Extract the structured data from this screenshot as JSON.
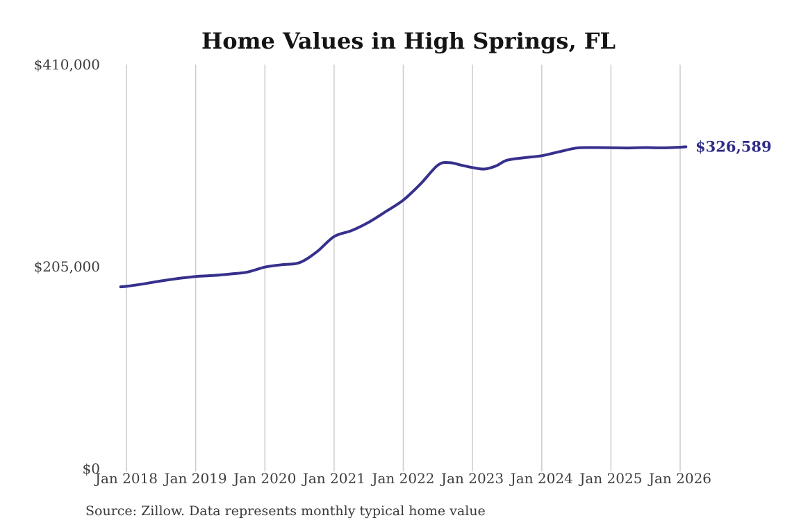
{
  "page": {
    "source_note": "Source: Zillow. Data represents monthly typical home value"
  },
  "chart_data": {
    "type": "line",
    "title": "Home Values in High Springs, FL",
    "xlabel": "",
    "ylabel": "",
    "ylim": [
      0,
      410000
    ],
    "grid": "vertical-only",
    "legend": "none",
    "line_color": "#36308d",
    "end_label_color": "#2f2c88",
    "axis_text_color": "#3e3e3e",
    "grid_color": "#cccccc",
    "end_label": "$326,589",
    "latest_value": 326589,
    "y_ticks": [
      {
        "label": "$0",
        "value": 0
      },
      {
        "label": "$205,000",
        "value": 205000
      },
      {
        "label": "$410,000",
        "value": 410000
      }
    ],
    "x_ticks": [
      {
        "label": "Jan 2018",
        "month": 0
      },
      {
        "label": "Jan 2019",
        "month": 12
      },
      {
        "label": "Jan 2020",
        "month": 24
      },
      {
        "label": "Jan 2021",
        "month": 36
      },
      {
        "label": "Jan 2022",
        "month": 48
      },
      {
        "label": "Jan 2023",
        "month": 60
      },
      {
        "label": "Jan 2024",
        "month": 72
      },
      {
        "label": "Jan 2025",
        "month": 84
      },
      {
        "label": "Jan 2026",
        "month": 96
      }
    ],
    "series": [
      {
        "name": "Monthly typical home value",
        "points": [
          [
            "2017-12",
            184500
          ],
          [
            "2018-01",
            185000
          ],
          [
            "2018-04",
            187500
          ],
          [
            "2018-07",
            190500
          ],
          [
            "2018-10",
            193000
          ],
          [
            "2019-01",
            195000
          ],
          [
            "2019-04",
            196000
          ],
          [
            "2019-07",
            197500
          ],
          [
            "2019-10",
            199500
          ],
          [
            "2020-01",
            204500
          ],
          [
            "2020-04",
            207000
          ],
          [
            "2020-07",
            209000
          ],
          [
            "2020-10",
            220000
          ],
          [
            "2021-01",
            235500
          ],
          [
            "2021-04",
            241500
          ],
          [
            "2021-07",
            250000
          ],
          [
            "2021-10",
            261000
          ],
          [
            "2022-01",
            272500
          ],
          [
            "2022-04",
            289000
          ],
          [
            "2022-07",
            308000
          ],
          [
            "2022-09",
            310500
          ],
          [
            "2022-11",
            308000
          ],
          [
            "2023-01",
            305500
          ],
          [
            "2023-03",
            304000
          ],
          [
            "2023-05",
            307000
          ],
          [
            "2023-07",
            313000
          ],
          [
            "2023-10",
            315500
          ],
          [
            "2024-01",
            317500
          ],
          [
            "2024-04",
            321500
          ],
          [
            "2024-07",
            325300
          ],
          [
            "2024-10",
            325800
          ],
          [
            "2025-01",
            325700
          ],
          [
            "2025-04",
            325400
          ],
          [
            "2025-07",
            325800
          ],
          [
            "2025-10",
            325500
          ],
          [
            "2026-01",
            326200
          ],
          [
            "2026-02",
            326589
          ]
        ]
      }
    ]
  }
}
